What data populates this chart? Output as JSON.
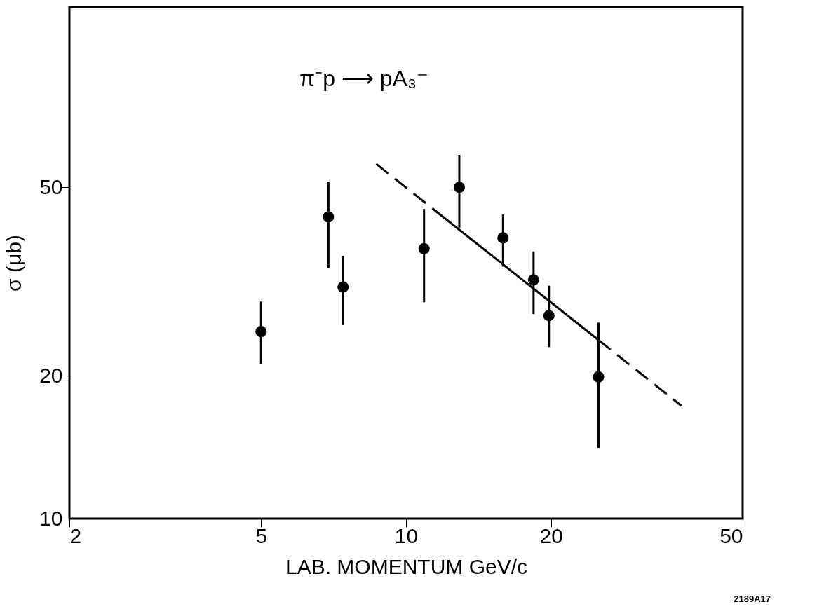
{
  "chart_data": {
    "type": "scatter",
    "title": "π⁻p ⟶ pA₃⁻",
    "xlabel": "LAB. MOMENTUM  GeV/c",
    "ylabel": "σ (μb)",
    "log": "xy",
    "grid": false,
    "xlim": [
      2,
      50
    ],
    "ylim": [
      10,
      120
    ],
    "xticks": [
      2,
      5,
      10,
      20,
      50
    ],
    "yticks": [
      10,
      20,
      50
    ],
    "series": [
      {
        "type": "scatter",
        "marker": "circle",
        "color": "#000000",
        "x": [
          5.0,
          6.9,
          7.4,
          10.9,
          12.9,
          15.9,
          18.4,
          19.8,
          25.1
        ],
        "values": [
          24.8,
          43.3,
          30.8,
          37.1,
          50,
          39.1,
          31.9,
          26.8,
          19.9
        ],
        "errors": [
          [
            21.2,
            28.7
          ],
          [
            33.8,
            51.4
          ],
          [
            25.6,
            35.8
          ],
          [
            28.6,
            45.0
          ],
          [
            41.1,
            58.5
          ],
          [
            34.0,
            43.8
          ],
          [
            27.0,
            36.6
          ],
          [
            23.0,
            31.0
          ],
          [
            14.1,
            25.9
          ]
        ]
      },
      {
        "type": "line",
        "line_style": "dashed",
        "color": "#000000",
        "x": [
          8.67,
          11.7
        ],
        "values": [
          56,
          44.0
        ]
      },
      {
        "type": "line",
        "line_style": "solid",
        "color": "#000000",
        "x": [
          11.7,
          25.1
        ],
        "values": [
          44.0,
          23.8
        ]
      },
      {
        "type": "line",
        "line_style": "dashed",
        "color": "#000000",
        "x": [
          25.1,
          37.3
        ],
        "values": [
          23.8,
          17.3
        ]
      }
    ],
    "annotations": [
      "2189A17"
    ]
  }
}
